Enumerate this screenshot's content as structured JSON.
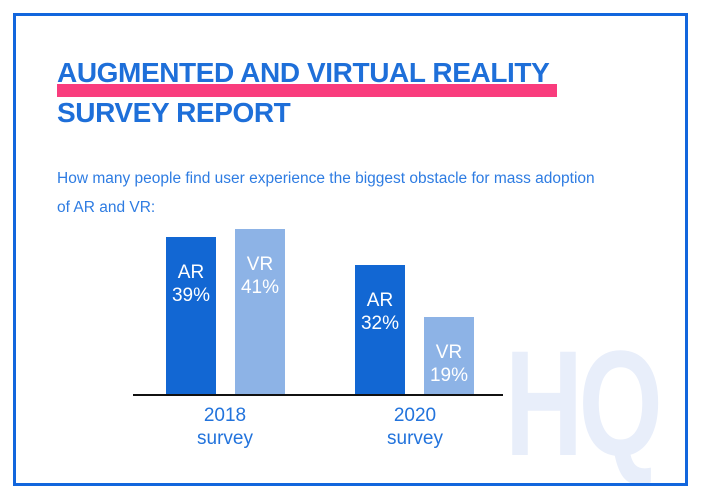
{
  "page": {
    "title_line1": "AUGMENTED AND VIRTUAL REALITY",
    "title_line2": "SURVEY REPORT",
    "subtitle_line1": "How many people find user experience the biggest obstacle for mass adoption",
    "subtitle_line2": "of AR and VR:",
    "watermark": "HQ",
    "colors": {
      "border": "#1266dd",
      "title": "#1e6fd9",
      "highlight": "#f93c7d",
      "subtitle": "#2e7ce2",
      "watermark": "#e8eefa"
    }
  },
  "chart_data": {
    "type": "bar",
    "title": "How many people find user experience the biggest obstacle for mass adoption of AR and VR",
    "categories": [
      "2018 survey",
      "2020 survey"
    ],
    "series": [
      {
        "name": "AR",
        "values": [
          39,
          32
        ],
        "color": "#1267d3"
      },
      {
        "name": "VR",
        "values": [
          41,
          19
        ],
        "color": "#8db3e6"
      }
    ],
    "unit": "%",
    "ylim": [
      0,
      41
    ],
    "grid": false,
    "legend": "labels-inside-bars",
    "bar_label_color": "#ffffff",
    "axis_line_color": "#111111",
    "category_label_color": "#2273dc"
  }
}
